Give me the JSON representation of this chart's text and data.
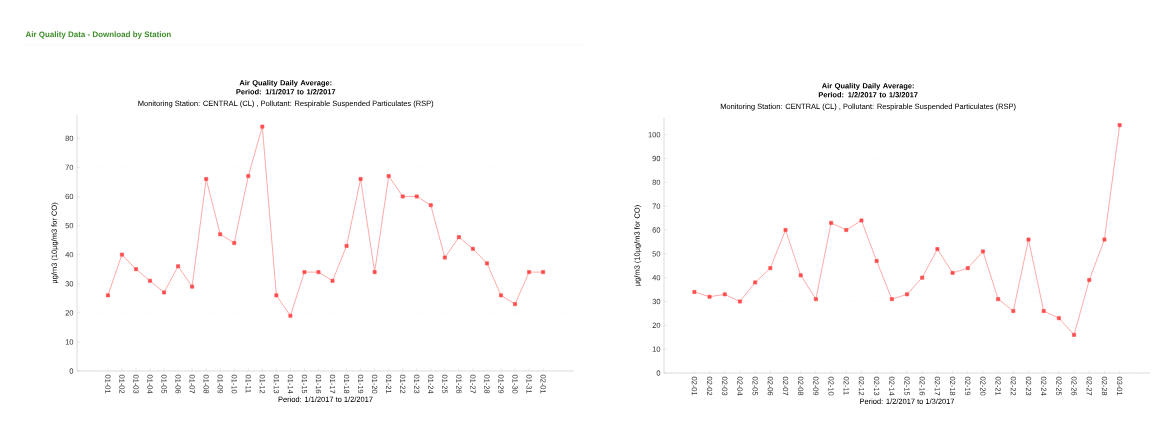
{
  "chart_data": [
    {
      "type": "line",
      "title": "Air Quality Daily Average: Period: 1/1/2017 to 1/2/2017",
      "subtitle": "Monitoring Station: CENTRAL (CL)  , Pollutant: Respirable Suspended Particulates (RSP)",
      "xlabel": "Period: 1/1/2017 to 1/2/2017",
      "ylabel": "µg/m3 (10µg/m3  for CO)",
      "annotations": [
        "Air Quality Data - Download by Station"
      ],
      "categories": [
        "01-01",
        "01-02",
        "01-03",
        "01-04",
        "01-05",
        "01-06",
        "01-07",
        "01-08",
        "01-09",
        "01-10",
        "01-11",
        "01-12",
        "01-13",
        "01-14",
        "01-15",
        "01-16",
        "01-17",
        "01-18",
        "01-19",
        "01-20",
        "01-21",
        "01-22",
        "01-23",
        "01-24",
        "01-25",
        "01-26",
        "01-27",
        "01-28",
        "01-29",
        "01-30",
        "01-31",
        "02-01"
      ],
      "values": [
        26,
        40,
        35,
        31,
        27,
        36,
        29,
        66,
        47,
        44,
        67,
        84,
        26,
        19,
        34,
        34,
        31,
        43,
        66,
        34,
        67,
        60,
        60,
        57,
        39,
        46,
        42,
        37,
        26,
        23,
        34,
        34
      ],
      "color": "#ff4d4d",
      "marker": "square",
      "line_style": "solid",
      "grid": "y",
      "ylim": [
        0,
        88
      ],
      "yticks": [
        0,
        10,
        20,
        30,
        40,
        50,
        60,
        70,
        80
      ]
    },
    {
      "type": "line",
      "title": "Air Quality Daily Average: Period: 1/2/2017 to 1/3/2017",
      "subtitle": "Monitoring Station: CENTRAL (CL)  , Pollutant: Respirable Suspended Particulates (RSP)",
      "xlabel": "Period: 1/2/2017 to 1/3/2017",
      "ylabel": "µg/m3 (10µg/m3  for CO)",
      "categories": [
        "02-01",
        "02-02",
        "02-03",
        "02-04",
        "02-05",
        "02-06",
        "02-07",
        "02-08",
        "02-09",
        "02-10",
        "02-11",
        "02-12",
        "02-13",
        "02-14",
        "02-15",
        "02-16",
        "02-17",
        "02-18",
        "02-19",
        "02-20",
        "02-21",
        "02-22",
        "02-23",
        "02-24",
        "02-25",
        "02-26",
        "02-27",
        "02-28",
        "03-01"
      ],
      "values": [
        34,
        32,
        33,
        30,
        38,
        44,
        60,
        41,
        31,
        63,
        60,
        64,
        47,
        31,
        33,
        40,
        52,
        42,
        44,
        51,
        31,
        26,
        56,
        26,
        23,
        16,
        39,
        56,
        104
      ],
      "color": "#ff4d4d",
      "marker": "square",
      "line_style": "solid",
      "grid": "y",
      "ylim": [
        0,
        107
      ],
      "yticks": [
        0,
        10,
        20,
        30,
        40,
        50,
        60,
        70,
        80,
        90,
        100
      ]
    }
  ]
}
